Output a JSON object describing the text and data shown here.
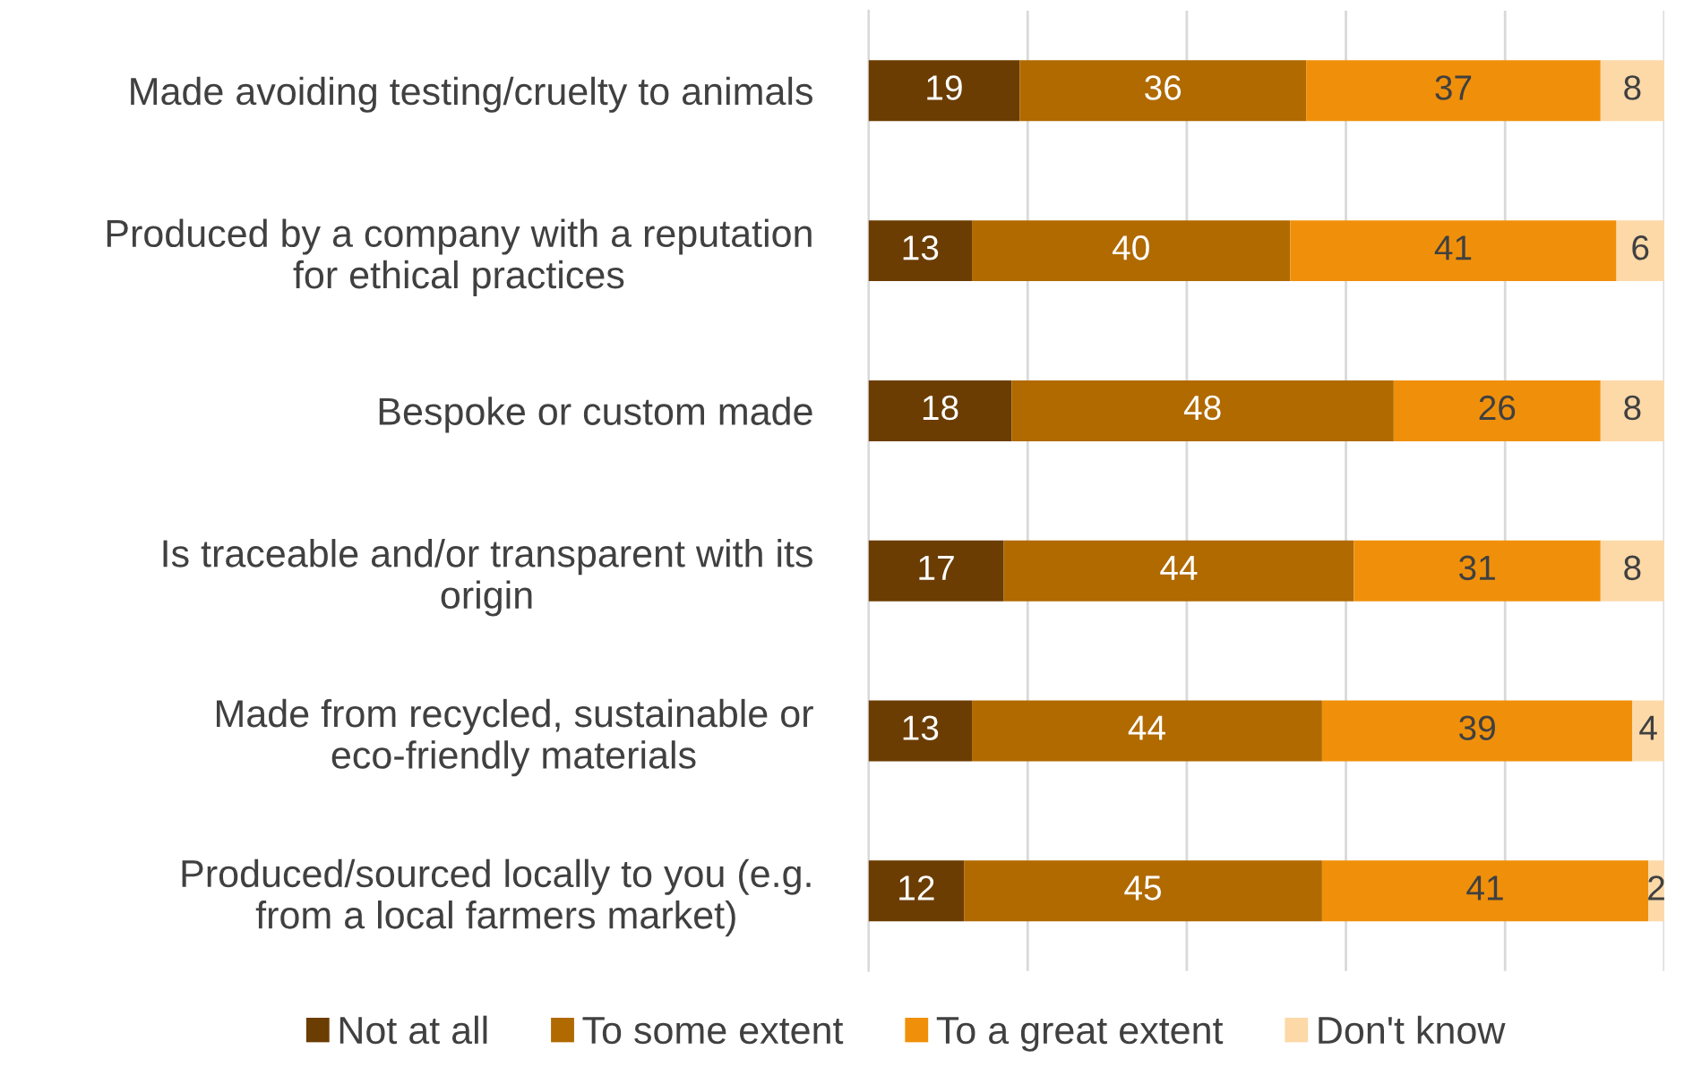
{
  "chart_data": {
    "type": "bar",
    "orientation": "horizontal",
    "stacked": true,
    "data_labels": true,
    "categories": [
      "Made avoiding testing/cruelty to animals",
      "Produced by a company with a reputation for ethical practices",
      "Bespoke or custom made",
      "Is traceable and/or transparent with its origin",
      "Made from recycled, sustainable or eco-friendly materials",
      "Produced/sourced locally to you (e.g. from a local farmers market)"
    ],
    "series": [
      {
        "name": "Not at all",
        "color": "#6b3d02",
        "values": [
          19,
          13,
          18,
          17,
          13,
          12
        ]
      },
      {
        "name": "To some extent",
        "color": "#b06a00",
        "values": [
          36,
          40,
          48,
          44,
          44,
          45
        ]
      },
      {
        "name": "To a great extent",
        "color": "#f0900a",
        "values": [
          37,
          41,
          26,
          31,
          39,
          41
        ]
      },
      {
        "name": "Don't know",
        "color": "#fdd9a8",
        "values": [
          8,
          6,
          8,
          8,
          4,
          2
        ]
      }
    ],
    "xlim": [
      0,
      100
    ],
    "xticks": [
      {
        "value": 0,
        "label": null
      },
      {
        "value": 20,
        "label": null
      },
      {
        "value": 40,
        "label": null
      },
      {
        "value": 60,
        "label": null
      },
      {
        "value": 80,
        "label": null
      },
      {
        "value": 100,
        "label": null
      }
    ],
    "grid": "x",
    "tick_labels": "y",
    "legend": "bottom"
  }
}
